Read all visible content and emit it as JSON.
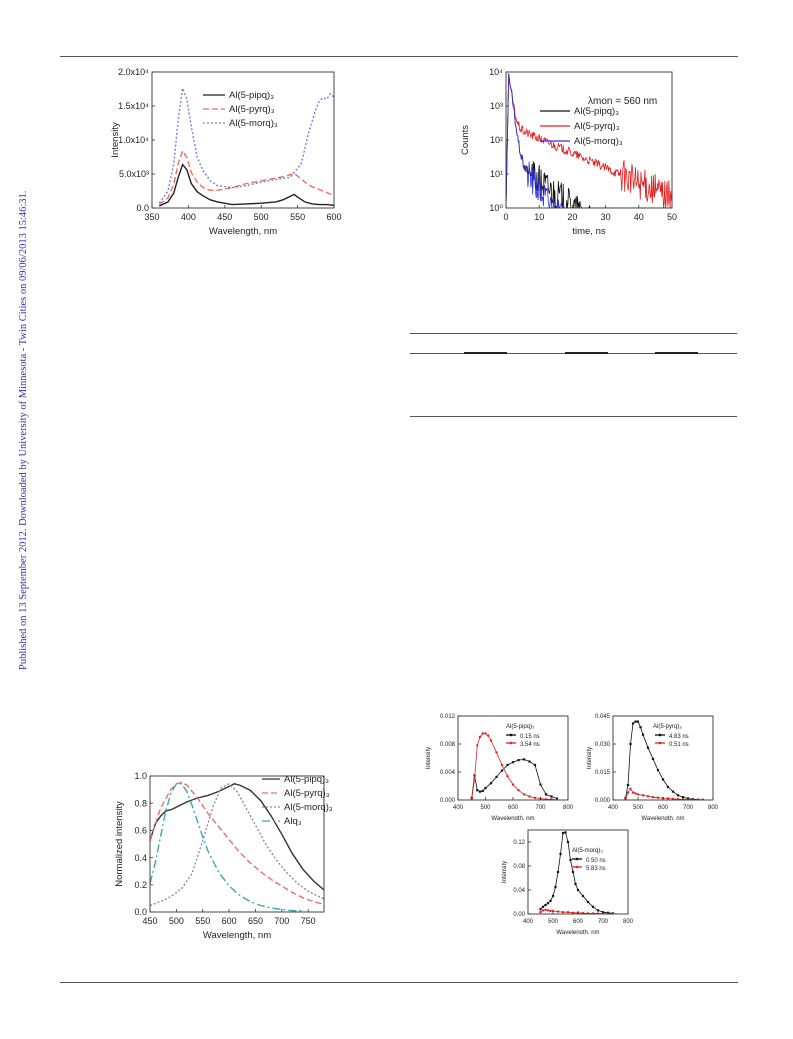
{
  "side_note": "Published on 13 September 2012. Downloaded by University of Minnesota - Twin Cities on 09/06/2013 15:46:31.",
  "chart_data": [
    {
      "id": "abs",
      "type": "line",
      "xlabel": "Wavelength, nm",
      "ylabel": "Intensity",
      "xlim": [
        350,
        600
      ],
      "ylim": [
        0,
        20000
      ],
      "xticks": [
        "350",
        "400",
        "450",
        "500",
        "550",
        "600"
      ],
      "yticks": [
        "0.0",
        "5.0x10³",
        "1.0x10⁴",
        "1.5x10⁴",
        "2.0x10⁴"
      ],
      "legend_position": "top-right",
      "series": [
        {
          "name": "Al(5-pipq)₃",
          "color": "#222222",
          "dash": "solid",
          "x": [
            360,
            372,
            380,
            386,
            392,
            398,
            404,
            412,
            420,
            430,
            440,
            460,
            480,
            500,
            520,
            530,
            540,
            545,
            550,
            560,
            570,
            580,
            590,
            600
          ],
          "y": [
            300,
            900,
            2200,
            4500,
            6400,
            5600,
            3600,
            2400,
            1800,
            1200,
            900,
            500,
            600,
            700,
            900,
            1200,
            1700,
            2000,
            1600,
            900,
            600,
            500,
            500,
            400
          ]
        },
        {
          "name": "Al(5-pyrq)₃",
          "color": "#e8706a",
          "dash": "6,3",
          "x": [
            360,
            372,
            380,
            386,
            392,
            398,
            404,
            412,
            420,
            430,
            440,
            460,
            480,
            500,
            520,
            530,
            540,
            545,
            550,
            560,
            570,
            580,
            590,
            600
          ],
          "y": [
            500,
            1500,
            3500,
            6500,
            8400,
            7400,
            5200,
            3800,
            3000,
            2600,
            2600,
            3000,
            3600,
            4000,
            4400,
            4600,
            4900,
            5100,
            4700,
            3800,
            3100,
            2700,
            2300,
            1800
          ]
        },
        {
          "name": "Al(5-morq)₃",
          "color": "#7b7bd8",
          "dash": "2,2",
          "x": [
            360,
            372,
            380,
            386,
            392,
            398,
            404,
            412,
            420,
            430,
            440,
            460,
            480,
            500,
            520,
            540,
            555,
            565,
            575,
            580,
            585,
            590,
            595,
            600
          ],
          "y": [
            700,
            2500,
            6500,
            13000,
            17600,
            16000,
            12000,
            7500,
            5500,
            4000,
            3300,
            3000,
            3300,
            3800,
            4200,
            4500,
            6500,
            11000,
            14500,
            15800,
            16200,
            16000,
            16800,
            16300
          ]
        }
      ]
    },
    {
      "id": "decay",
      "type": "line",
      "xlabel": "time, ns",
      "ylabel": "Counts",
      "xlim": [
        0,
        50
      ],
      "ylim": [
        1,
        10000
      ],
      "yscale": "log",
      "xticks": [
        "0",
        "10",
        "20",
        "30",
        "40",
        "50"
      ],
      "yticks": [
        "10⁰",
        "10¹",
        "10²",
        "10³",
        "10⁴"
      ],
      "annotation": "λmon = 560 nm",
      "legend_position": "top-right",
      "series": [
        {
          "name": "Al(5-pipq)₃",
          "color": "#111111",
          "tau": 5.5,
          "amp": 40
        },
        {
          "name": "Al(5-pyrq)₃",
          "color": "#e02020",
          "tau": 10,
          "amp": 300
        },
        {
          "name": "Al(5-morq)₃",
          "color": "#3030d8",
          "tau": 3.5,
          "amp": 60
        }
      ]
    },
    {
      "id": "pl",
      "type": "line",
      "xlabel": "Wavelength, nm",
      "ylabel": "Normalized intensity",
      "xlim": [
        450,
        780
      ],
      "ylim": [
        0,
        1.05
      ],
      "xticks": [
        "450",
        "500",
        "550",
        "600",
        "650",
        "700",
        "750"
      ],
      "yticks": [
        "0.0",
        "0.2",
        "0.4",
        "0.6",
        "0.8",
        "1.0"
      ],
      "legend_position": "top-right",
      "series": [
        {
          "name": "Al(5-pipq)₃",
          "color": "#333333",
          "dash": "solid",
          "x": [
            450,
            460,
            470,
            480,
            490,
            500,
            520,
            540,
            560,
            580,
            600,
            610,
            620,
            640,
            660,
            680,
            700,
            720,
            740,
            760,
            780
          ],
          "y": [
            0.55,
            0.68,
            0.74,
            0.78,
            0.79,
            0.81,
            0.85,
            0.88,
            0.9,
            0.93,
            0.97,
            0.99,
            0.98,
            0.94,
            0.86,
            0.74,
            0.6,
            0.45,
            0.33,
            0.24,
            0.17
          ]
        },
        {
          "name": "Al(5-pyrq)₃",
          "color": "#e8706a",
          "dash": "6,3",
          "x": [
            450,
            470,
            490,
            500,
            510,
            520,
            540,
            560,
            580,
            600,
            620,
            640,
            660,
            680,
            700,
            720,
            740,
            760,
            780
          ],
          "y": [
            0.55,
            0.8,
            0.95,
            0.99,
            1.0,
            0.98,
            0.88,
            0.76,
            0.66,
            0.56,
            0.46,
            0.38,
            0.31,
            0.25,
            0.2,
            0.15,
            0.11,
            0.08,
            0.06
          ]
        },
        {
          "name": "Al(5-morq)₃",
          "color": "#8a8aa8",
          "dash": "2,2",
          "x": [
            450,
            470,
            490,
            510,
            530,
            550,
            570,
            585,
            600,
            615,
            630,
            650,
            670,
            690,
            710,
            730,
            750,
            770,
            780
          ],
          "y": [
            0.05,
            0.08,
            0.12,
            0.18,
            0.3,
            0.55,
            0.82,
            0.96,
            0.99,
            0.93,
            0.82,
            0.67,
            0.52,
            0.4,
            0.3,
            0.22,
            0.16,
            0.12,
            0.1
          ]
        },
        {
          "name": "Alq₃",
          "color": "#3aa8b4",
          "dash": "8,3,2,3",
          "x": [
            450,
            460,
            470,
            480,
            490,
            500,
            510,
            520,
            530,
            540,
            550,
            560,
            580,
            600,
            620,
            640,
            660,
            680,
            700,
            720,
            740
          ],
          "y": [
            0.22,
            0.38,
            0.58,
            0.78,
            0.92,
            0.99,
            0.99,
            0.93,
            0.82,
            0.7,
            0.58,
            0.47,
            0.31,
            0.2,
            0.13,
            0.08,
            0.05,
            0.03,
            0.02,
            0.01,
            0.01
          ]
        }
      ]
    },
    {
      "id": "tres1",
      "type": "line",
      "title": "Al(5-pipq)₃",
      "xlabel": "Wavelength, nm",
      "ylabel": "Intensity",
      "xlim": [
        400,
        800
      ],
      "ylim": [
        0,
        0.012
      ],
      "xticks": [
        "400",
        "500",
        "600",
        "700",
        "800"
      ],
      "yticks": [
        "0.000",
        "0.004",
        "0.008",
        "0.012"
      ],
      "legend_position": "top-right",
      "series": [
        {
          "name": "0.15 ns",
          "color": "#111111",
          "x": [
            450,
            460,
            470,
            480,
            490,
            500,
            520,
            540,
            560,
            580,
            600,
            620,
            640,
            660,
            680,
            700,
            720,
            740,
            760
          ],
          "y": [
            0.0003,
            0.0035,
            0.0014,
            0.0012,
            0.0013,
            0.0017,
            0.0024,
            0.0033,
            0.0042,
            0.005,
            0.0054,
            0.0057,
            0.0058,
            0.0055,
            0.005,
            0.0022,
            0.0008,
            0.0005,
            0.0002
          ]
        },
        {
          "name": "3.54 ns",
          "color": "#e02020",
          "x": [
            450,
            460,
            470,
            480,
            490,
            500,
            510,
            520,
            540,
            560,
            580,
            600,
            620,
            640,
            660,
            680,
            700,
            720,
            740,
            760
          ],
          "y": [
            0.0002,
            0.003,
            0.0078,
            0.009,
            0.0095,
            0.0095,
            0.0092,
            0.0085,
            0.0068,
            0.005,
            0.0034,
            0.0022,
            0.0014,
            0.0008,
            0.0005,
            0.0003,
            0.0002,
            0.0001,
            0.0001,
            0.0
          ]
        }
      ]
    },
    {
      "id": "tres2",
      "type": "line",
      "title": "Al(5-pyrq)₃",
      "xlabel": "Wavelength, nm",
      "ylabel": "Intensity",
      "xlim": [
        400,
        800
      ],
      "ylim": [
        0,
        0.045
      ],
      "xticks": [
        "400",
        "500",
        "600",
        "700",
        "800"
      ],
      "yticks": [
        "0.000",
        "0.015",
        "0.030",
        "0.045"
      ],
      "legend_position": "top-right",
      "series": [
        {
          "name": "4.83 ns",
          "color": "#111111",
          "x": [
            450,
            460,
            470,
            480,
            490,
            500,
            510,
            520,
            540,
            560,
            580,
            600,
            620,
            640,
            660,
            680,
            700,
            720,
            740,
            760
          ],
          "y": [
            0.001,
            0.008,
            0.03,
            0.041,
            0.042,
            0.042,
            0.039,
            0.035,
            0.028,
            0.022,
            0.016,
            0.011,
            0.007,
            0.0045,
            0.0025,
            0.0015,
            0.0008,
            0.0004,
            0.0002,
            0.0001
          ]
        },
        {
          "name": "0.51 ns",
          "color": "#e02020",
          "x": [
            450,
            460,
            470,
            480,
            490,
            500,
            520,
            540,
            560,
            580,
            600,
            620,
            640,
            660,
            680,
            700,
            720,
            740,
            760
          ],
          "y": [
            0.0005,
            0.004,
            0.006,
            0.004,
            0.0035,
            0.003,
            0.0025,
            0.002,
            0.0015,
            0.0012,
            0.001,
            0.0008,
            0.0006,
            0.0004,
            0.0003,
            0.0002,
            0.0001,
            0.0001,
            0.0
          ]
        }
      ]
    },
    {
      "id": "tres3",
      "type": "line",
      "title": "Al(5-morq)₃",
      "xlabel": "Wavelength, nm",
      "ylabel": "Intensity",
      "xlim": [
        400,
        800
      ],
      "ylim": [
        0,
        0.14
      ],
      "xticks": [
        "400",
        "500",
        "600",
        "700",
        "800"
      ],
      "yticks": [
        "0.00",
        "0.04",
        "0.08",
        "0.12"
      ],
      "legend_position": "top-right",
      "series": [
        {
          "name": "0.50 ns",
          "color": "#111111",
          "x": [
            450,
            460,
            470,
            480,
            490,
            500,
            510,
            520,
            530,
            540,
            550,
            560,
            570,
            580,
            590,
            600,
            620,
            640,
            660,
            680,
            700,
            720,
            740
          ],
          "y": [
            0.008,
            0.012,
            0.015,
            0.018,
            0.022,
            0.03,
            0.045,
            0.07,
            0.1,
            0.135,
            0.136,
            0.12,
            0.09,
            0.07,
            0.05,
            0.04,
            0.03,
            0.02,
            0.012,
            0.006,
            0.003,
            0.002,
            0.001
          ]
        },
        {
          "name": "5.83 ns",
          "color": "#e02020",
          "x": [
            450,
            460,
            470,
            480,
            490,
            500,
            520,
            540,
            560,
            580,
            600,
            620,
            640,
            660,
            680,
            700,
            720,
            740
          ],
          "y": [
            0.003,
            0.006,
            0.007,
            0.006,
            0.005,
            0.005,
            0.004,
            0.003,
            0.003,
            0.002,
            0.002,
            0.0015,
            0.001,
            0.001,
            0.0008,
            0.0005,
            0.0003,
            0.0002
          ]
        }
      ]
    }
  ]
}
